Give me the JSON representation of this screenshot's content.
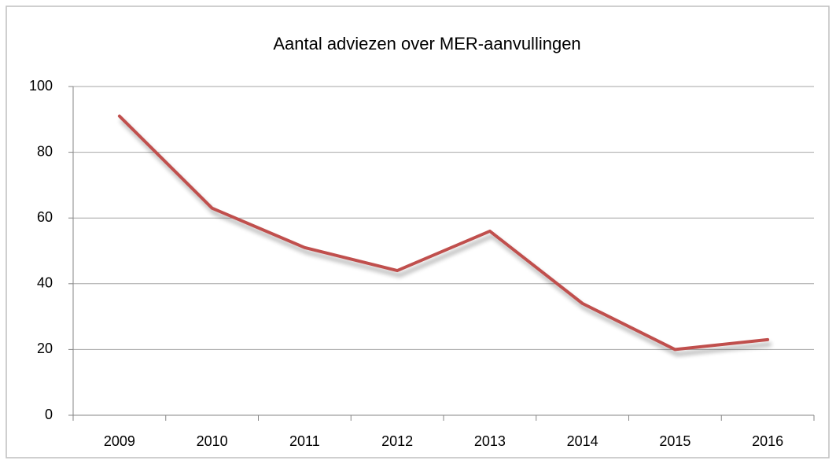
{
  "chart_data": {
    "type": "line",
    "title": "Aantal adviezen over MER-aanvullingen",
    "categories": [
      "2009",
      "2010",
      "2011",
      "2012",
      "2013",
      "2014",
      "2015",
      "2016"
    ],
    "series": [
      {
        "name": "Aantal adviezen",
        "color": "#c0504d",
        "values": [
          91,
          63,
          51,
          44,
          56,
          34,
          20,
          23
        ]
      }
    ],
    "ylim": [
      0,
      100
    ],
    "yticks": [
      0,
      20,
      40,
      60,
      80,
      100
    ],
    "grid": true
  }
}
